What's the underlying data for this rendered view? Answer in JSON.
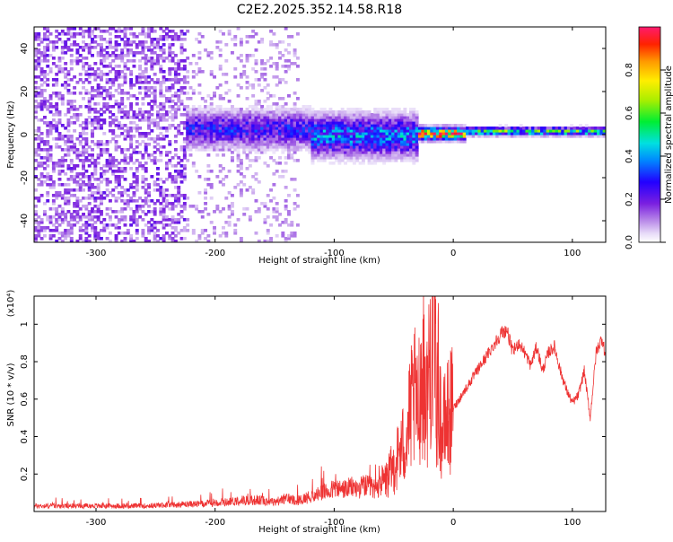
{
  "title": "C2E2.2025.352.14.58.R18",
  "chart_data": [
    {
      "type": "heatmap",
      "title": "C2E2.2025.352.14.58.R18",
      "xlabel": "Height of straight line (km)",
      "ylabel": "Frequency (Hz)",
      "xlim": [
        -352,
        128
      ],
      "ylim": [
        -50,
        50
      ],
      "xticks": [
        -300,
        -200,
        -100,
        0,
        100
      ],
      "yticks": [
        -40,
        -20,
        0,
        20,
        40
      ],
      "xtick_labels": [
        "-300",
        "-200",
        "-100",
        "0",
        "100"
      ],
      "ytick_labels": [
        "-40",
        "-20",
        "0",
        "20",
        "40"
      ],
      "colorbar": {
        "label": "Normalized spectral amplitude",
        "range": [
          0,
          1
        ],
        "ticks": [
          0.0,
          0.2,
          0.4,
          0.6,
          0.8
        ],
        "tick_labels": [
          "0.0",
          "0.2",
          "0.4",
          "0.6",
          "0.8"
        ],
        "colormap": "rainbow (white-lavender-purple-blue-cyan-green-yellow-orange-red-magenta)"
      },
      "regions": [
        {
          "x": [
            -352,
            -225
          ],
          "description": "noise",
          "amplitude": 0.12
        },
        {
          "x": [
            -225,
            -120
          ],
          "description": "band 0 Hz",
          "center_hz": 2,
          "half_width_hz": 9,
          "amplitude": 0.25
        },
        {
          "x": [
            -120,
            -30
          ],
          "description": "band 0 Hz",
          "center_hz": -1,
          "half_width_hz": 10,
          "amplitude": 0.35
        },
        {
          "x": [
            -30,
            10
          ],
          "description": "line 0 Hz",
          "center_hz": 0,
          "half_width_hz": 3,
          "amplitude": 0.85
        },
        {
          "x": [
            10,
            128
          ],
          "description": "line 0 Hz",
          "center_hz": 1,
          "half_width_hz": 2,
          "amplitude": 0.5
        }
      ]
    },
    {
      "type": "line",
      "xlabel": "Height of straight line (km)",
      "ylabel": "SNR (10 * v/v)",
      "y_multiplier": "(x10⁴)",
      "xlim": [
        -352,
        128
      ],
      "ylim": [
        0,
        1.15
      ],
      "xticks": [
        -300,
        -200,
        -100,
        0,
        100
      ],
      "yticks": [
        0.2,
        0.4,
        0.6,
        0.8,
        1.0
      ],
      "xtick_labels": [
        "-300",
        "-200",
        "-100",
        "0",
        "100"
      ],
      "ytick_labels": [
        "0.2",
        "0.4",
        "0.6",
        "0.8",
        "1"
      ],
      "color": "#ee3333",
      "series": [
        {
          "x": [
            -352,
            -330,
            -300,
            -280,
            -260,
            -240,
            -220,
            -210,
            -200,
            -190,
            -180,
            -170,
            -160,
            -150,
            -140,
            -130,
            -120,
            -110,
            -100,
            -90,
            -85,
            -80,
            -75,
            -70,
            -65,
            -60,
            -55,
            -50,
            -45,
            -40,
            -35,
            -32,
            -30,
            -28,
            -25,
            -22,
            -20,
            -18,
            -16,
            -14,
            -12,
            -10,
            -5,
            0,
            5,
            10,
            15,
            20,
            25,
            30,
            35,
            40,
            45,
            50,
            55,
            60,
            65,
            70,
            75,
            80,
            85,
            90,
            95,
            100,
            105,
            110,
            115,
            120,
            125,
            128
          ],
          "y": [
            0.03,
            0.03,
            0.03,
            0.03,
            0.03,
            0.035,
            0.04,
            0.04,
            0.05,
            0.05,
            0.06,
            0.06,
            0.06,
            0.05,
            0.07,
            0.06,
            0.08,
            0.1,
            0.12,
            0.12,
            0.13,
            0.12,
            0.14,
            0.13,
            0.12,
            0.15,
            0.18,
            0.24,
            0.32,
            0.38,
            0.55,
            0.6,
            0.5,
            0.7,
            0.75,
            0.6,
            0.8,
            0.9,
            1.08,
            0.6,
            0.7,
            0.4,
            0.5,
            0.55,
            0.6,
            0.65,
            0.7,
            0.75,
            0.8,
            0.85,
            0.9,
            0.95,
            0.97,
            0.85,
            0.9,
            0.85,
            0.78,
            0.88,
            0.75,
            0.85,
            0.88,
            0.75,
            0.65,
            0.58,
            0.62,
            0.75,
            0.5,
            0.85,
            0.93,
            0.82
          ]
        }
      ]
    }
  ]
}
